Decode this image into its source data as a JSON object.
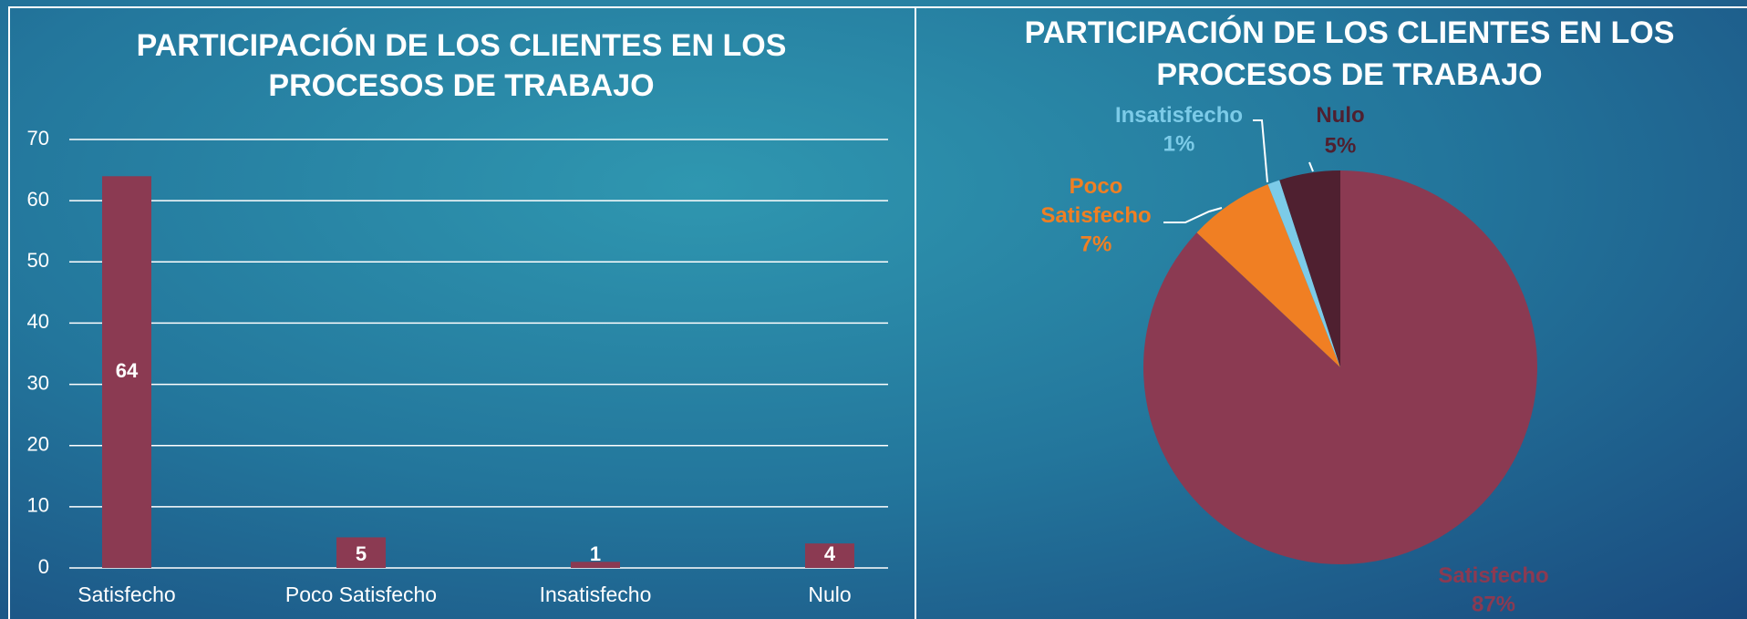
{
  "chart_data": [
    {
      "type": "bar",
      "title": "PARTICIPACIÓN DE LOS CLIENTES EN LOS PROCESOS DE TRABAJO",
      "categories": [
        "Satisfecho",
        "Poco Satisfecho",
        "Insatisfecho",
        "Nulo"
      ],
      "values": [
        64,
        5,
        1,
        4
      ],
      "color": "#8b3a52",
      "ylim": [
        0,
        70
      ],
      "yticks": [
        0,
        10,
        20,
        30,
        40,
        50,
        60,
        70
      ],
      "grid": true
    },
    {
      "type": "pie",
      "title": "PARTICIPACIÓN DE LOS CLIENTES EN LOS PROCESOS DE TRABAJO",
      "categories": [
        "Satisfecho",
        "Poco Satisfecho",
        "Insatisfecho",
        "Nulo"
      ],
      "values": [
        87,
        7,
        1,
        5
      ],
      "value_labels": [
        "87%",
        "7%",
        "1%",
        "5%"
      ],
      "colors": [
        "#8b3a52",
        "#f07f23",
        "#7ccbe8",
        "#4f2030"
      ]
    }
  ]
}
